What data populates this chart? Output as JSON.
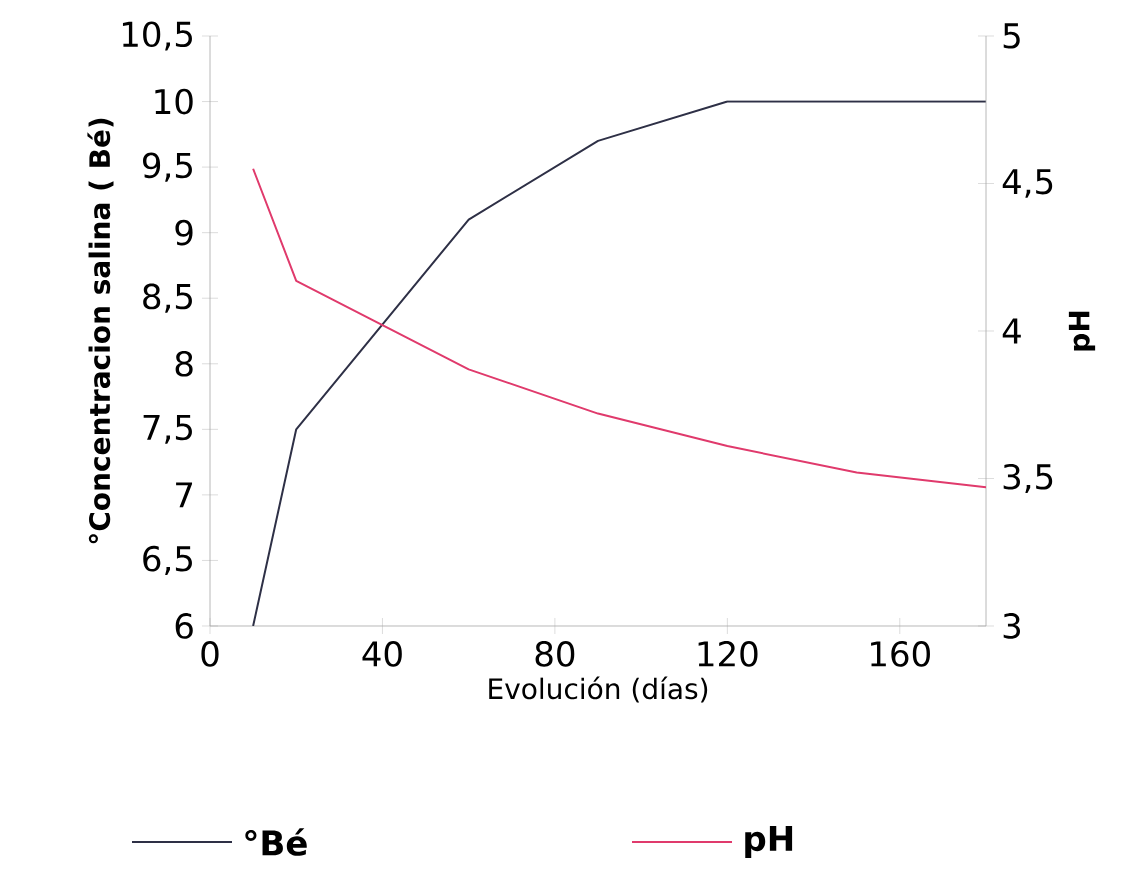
{
  "chart_data": {
    "type": "line",
    "xlabel": "Evolución (días)",
    "ylabel": "°Concentracion salina ( Bé)",
    "y2label": "pH",
    "xlim": [
      0,
      180
    ],
    "xticks": [
      0,
      40,
      80,
      120,
      160
    ],
    "ylim": [
      6,
      10.5
    ],
    "yticks": [
      6,
      {
        "value": 6.5,
        "label": "6,5"
      },
      7,
      {
        "value": 7.5,
        "label": "7,5"
      },
      8,
      {
        "value": 8.5,
        "label": "8,5"
      },
      9,
      {
        "value": 9.5,
        "label": "9,5"
      },
      10,
      {
        "value": 10.5,
        "label": "10,5"
      }
    ],
    "y2lim": [
      3,
      5
    ],
    "y2ticks": [
      3,
      {
        "value": 3.5,
        "label": "3,5"
      },
      4,
      {
        "value": 4.5,
        "label": "4,5"
      },
      5
    ],
    "grid": false,
    "legend": "bottom",
    "marker": "none",
    "line_style": "solid",
    "series": [
      {
        "name": "°Bé",
        "color": "#2e3046",
        "x": [
          10,
          20,
          60,
          90,
          120,
          180
        ],
        "values": [
          6,
          7.5,
          9.1,
          9.7,
          10,
          10
        ]
      },
      {
        "name": "pH",
        "color": "#e03a6c",
        "axis": "y2",
        "x": [
          10,
          20,
          40,
          60,
          90,
          120,
          150,
          180
        ],
        "values": [
          4.55,
          4.17,
          4.02,
          3.87,
          3.72,
          3.61,
          3.52,
          3.47
        ]
      }
    ]
  }
}
